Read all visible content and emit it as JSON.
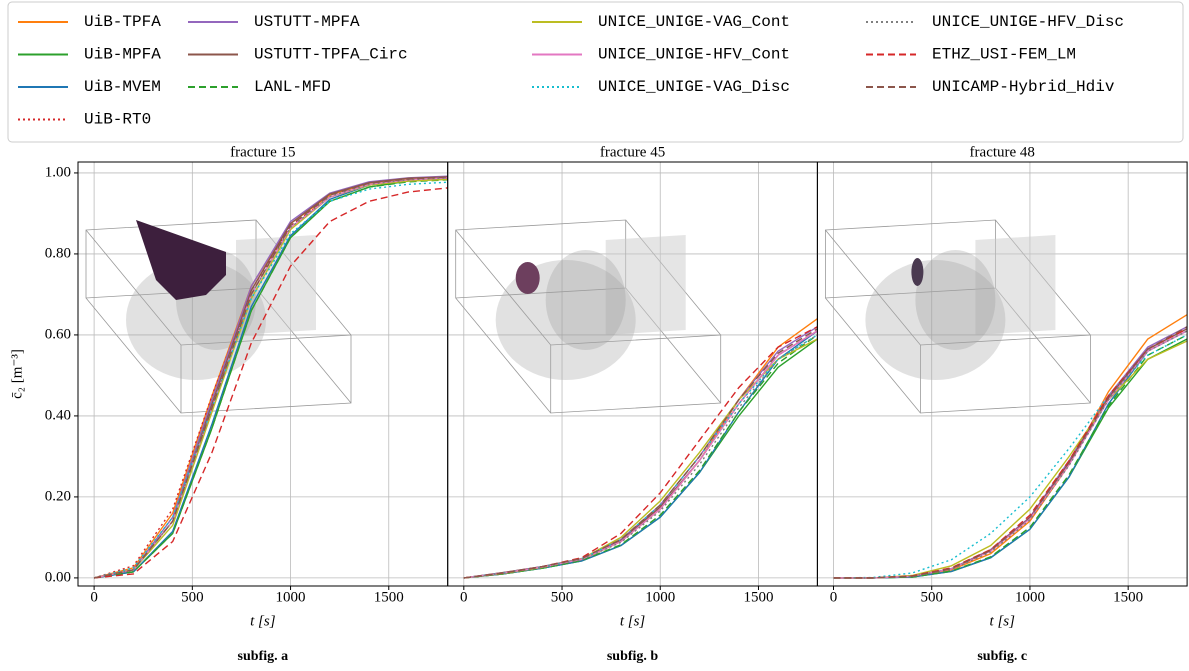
{
  "chart_data": [
    {
      "type": "line",
      "title": "fracture 15",
      "xlabel": "t [s]",
      "ylabel": "c̄₂ [m⁻³]",
      "caption": "subfig. a",
      "x": [
        0,
        200,
        400,
        600,
        800,
        1000,
        1200,
        1400,
        1600,
        1800
      ],
      "xlim": [
        -82,
        1800
      ],
      "xticks": [
        0,
        500,
        1000,
        1500
      ],
      "ylim": [
        -0.02,
        1.027
      ],
      "yticks": [
        {
          "value": 0,
          "label": "0.00"
        },
        {
          "value": 0.2,
          "label": "0.20"
        },
        {
          "value": 0.4,
          "label": "0.40"
        },
        {
          "value": 0.6,
          "label": "0.60"
        },
        {
          "value": 0.8,
          "label": "0.80"
        },
        {
          "value": 1,
          "label": "1.00"
        }
      ],
      "grid": true,
      "legend": "top",
      "series": [
        {
          "name": "UiB-TPFA",
          "color": "#ff7f0e",
          "dash": "solid",
          "values": [
            0,
            0.025,
            0.16,
            0.45,
            0.72,
            0.875,
            0.945,
            0.975,
            0.985,
            0.99
          ]
        },
        {
          "name": "UiB-MPFA",
          "color": "#2ca02c",
          "dash": "solid",
          "values": [
            0,
            0.015,
            0.11,
            0.37,
            0.66,
            0.84,
            0.93,
            0.965,
            0.98,
            0.985
          ]
        },
        {
          "name": "UiB-MVEM",
          "color": "#1f77b4",
          "dash": "solid",
          "values": [
            0,
            0.015,
            0.115,
            0.38,
            0.67,
            0.845,
            0.935,
            0.97,
            0.982,
            0.987
          ]
        },
        {
          "name": "UiB-RT0",
          "color": "#d62728",
          "dash": "dotted",
          "values": [
            0,
            0.03,
            0.17,
            0.45,
            0.71,
            0.87,
            0.94,
            0.97,
            0.982,
            0.987
          ]
        },
        {
          "name": "USTUTT-MPFA",
          "color": "#9467bd",
          "dash": "solid",
          "values": [
            0,
            0.02,
            0.15,
            0.44,
            0.72,
            0.88,
            0.95,
            0.978,
            0.988,
            0.992
          ]
        },
        {
          "name": "USTUTT-TPFA_Circ",
          "color": "#8c564b",
          "dash": "solid",
          "values": [
            0,
            0.02,
            0.14,
            0.43,
            0.71,
            0.875,
            0.948,
            0.976,
            0.987,
            0.99
          ]
        },
        {
          "name": "LANL-MFD",
          "color": "#2ca02c",
          "dash": "dashed",
          "values": [
            0,
            0.015,
            0.11,
            0.37,
            0.66,
            0.84,
            0.93,
            0.965,
            0.978,
            0.983
          ]
        },
        {
          "name": "UNICE_UNIGE-VAG_Cont",
          "color": "#bcbd22",
          "dash": "solid",
          "values": [
            0,
            0.02,
            0.13,
            0.41,
            0.69,
            0.86,
            0.94,
            0.97,
            0.98,
            0.984
          ]
        },
        {
          "name": "UNICE_UNIGE-HFV_Cont",
          "color": "#e377c2",
          "dash": "solid",
          "values": [
            0,
            0.02,
            0.14,
            0.42,
            0.7,
            0.865,
            0.94,
            0.972,
            0.983,
            0.988
          ]
        },
        {
          "name": "UNICE_UNIGE-VAG_Disc",
          "color": "#17becf",
          "dash": "dotted",
          "values": [
            0,
            0.025,
            0.15,
            0.42,
            0.69,
            0.85,
            0.93,
            0.96,
            0.972,
            0.977
          ]
        },
        {
          "name": "UNICE_UNIGE-HFV_Disc",
          "color": "#7f7f7f",
          "dash": "dotted",
          "values": [
            0,
            0.02,
            0.14,
            0.42,
            0.7,
            0.865,
            0.942,
            0.972,
            0.983,
            0.988
          ]
        },
        {
          "name": "ETHZ_USI-FEM_LM",
          "color": "#d62728",
          "dash": "dashed",
          "values": [
            0,
            0.01,
            0.09,
            0.31,
            0.58,
            0.77,
            0.88,
            0.93,
            0.953,
            0.963
          ]
        },
        {
          "name": "UNICAMP-Hybrid_Hdiv",
          "color": "#8c564b",
          "dash": "dashed",
          "values": [
            0,
            0.02,
            0.14,
            0.42,
            0.7,
            0.87,
            0.945,
            0.975,
            0.985,
            0.99
          ]
        }
      ]
    },
    {
      "type": "line",
      "title": "fracture 45",
      "xlabel": "t [s]",
      "caption": "subfig. b",
      "x": [
        0,
        200,
        400,
        600,
        800,
        1000,
        1200,
        1400,
        1600,
        1800
      ],
      "xlim": [
        -82,
        1800
      ],
      "xticks": [
        0,
        500,
        1000,
        1500
      ],
      "series": [
        {
          "values": [
            0,
            0.01,
            0.025,
            0.045,
            0.09,
            0.17,
            0.29,
            0.44,
            0.57,
            0.64
          ]
        },
        {
          "values": [
            0,
            0.01,
            0.024,
            0.042,
            0.08,
            0.15,
            0.26,
            0.4,
            0.52,
            0.59
          ]
        },
        {
          "values": [
            0,
            0.01,
            0.024,
            0.042,
            0.08,
            0.15,
            0.26,
            0.41,
            0.54,
            0.61
          ]
        },
        {
          "values": [
            0,
            0.012,
            0.027,
            0.047,
            0.09,
            0.17,
            0.29,
            0.43,
            0.55,
            0.61
          ]
        },
        {
          "values": [
            0,
            0.013,
            0.028,
            0.048,
            0.095,
            0.18,
            0.3,
            0.44,
            0.56,
            0.62
          ]
        },
        {
          "values": [
            0,
            0.013,
            0.028,
            0.047,
            0.092,
            0.175,
            0.29,
            0.43,
            0.55,
            0.61
          ]
        },
        {
          "values": [
            0,
            0.01,
            0.024,
            0.043,
            0.082,
            0.155,
            0.265,
            0.41,
            0.53,
            0.6
          ]
        },
        {
          "values": [
            0,
            0.011,
            0.026,
            0.047,
            0.1,
            0.19,
            0.31,
            0.44,
            0.54,
            0.59
          ]
        },
        {
          "values": [
            0,
            0.012,
            0.027,
            0.046,
            0.09,
            0.17,
            0.29,
            0.43,
            0.55,
            0.61
          ]
        },
        {
          "values": [
            0,
            0.012,
            0.027,
            0.047,
            0.095,
            0.18,
            0.3,
            0.43,
            0.54,
            0.6
          ]
        },
        {
          "values": [
            0,
            0.011,
            0.026,
            0.045,
            0.088,
            0.165,
            0.28,
            0.42,
            0.54,
            0.6
          ]
        },
        {
          "values": [
            0,
            0.012,
            0.028,
            0.05,
            0.11,
            0.21,
            0.34,
            0.47,
            0.57,
            0.62
          ]
        },
        {
          "values": [
            0,
            0.012,
            0.028,
            0.048,
            0.095,
            0.18,
            0.3,
            0.44,
            0.555,
            0.615
          ]
        }
      ]
    },
    {
      "type": "line",
      "title": "fracture 48",
      "xlabel": "t [s]",
      "caption": "subfig. c",
      "x": [
        0,
        200,
        400,
        600,
        800,
        1000,
        1200,
        1400,
        1600,
        1800
      ],
      "xlim": [
        -82,
        1800
      ],
      "xticks": [
        0,
        500,
        1000,
        1500
      ],
      "series": [
        {
          "values": [
            0,
            0,
            0.003,
            0.02,
            0.06,
            0.14,
            0.28,
            0.46,
            0.59,
            0.65
          ]
        },
        {
          "values": [
            0,
            0,
            0.002,
            0.016,
            0.05,
            0.12,
            0.25,
            0.42,
            0.54,
            0.59
          ]
        },
        {
          "values": [
            0,
            0,
            0.002,
            0.016,
            0.05,
            0.12,
            0.25,
            0.43,
            0.56,
            0.61
          ]
        },
        {
          "values": [
            0,
            0,
            0.004,
            0.022,
            0.065,
            0.145,
            0.28,
            0.44,
            0.56,
            0.61
          ]
        },
        {
          "values": [
            0,
            0,
            0.004,
            0.023,
            0.07,
            0.15,
            0.29,
            0.45,
            0.57,
            0.62
          ]
        },
        {
          "values": [
            0,
            0,
            0.004,
            0.022,
            0.068,
            0.148,
            0.285,
            0.445,
            0.565,
            0.615
          ]
        },
        {
          "values": [
            0,
            0,
            0.002,
            0.017,
            0.052,
            0.125,
            0.255,
            0.425,
            0.55,
            0.6
          ]
        },
        {
          "values": [
            0,
            0,
            0.006,
            0.03,
            0.08,
            0.17,
            0.3,
            0.44,
            0.54,
            0.585
          ]
        },
        {
          "values": [
            0,
            0,
            0.004,
            0.022,
            0.066,
            0.146,
            0.28,
            0.44,
            0.56,
            0.61
          ]
        },
        {
          "values": [
            0,
            0.001,
            0.012,
            0.045,
            0.11,
            0.2,
            0.32,
            0.45,
            0.55,
            0.6
          ]
        },
        {
          "values": [
            0,
            0,
            0.004,
            0.021,
            0.064,
            0.143,
            0.278,
            0.44,
            0.56,
            0.61
          ]
        },
        {
          "values": [
            0,
            0,
            0.005,
            0.025,
            0.07,
            0.155,
            0.29,
            0.45,
            0.565,
            0.615
          ]
        },
        {
          "values": [
            0,
            0,
            0.004,
            0.023,
            0.068,
            0.15,
            0.285,
            0.445,
            0.565,
            0.62
          ]
        }
      ]
    }
  ]
}
